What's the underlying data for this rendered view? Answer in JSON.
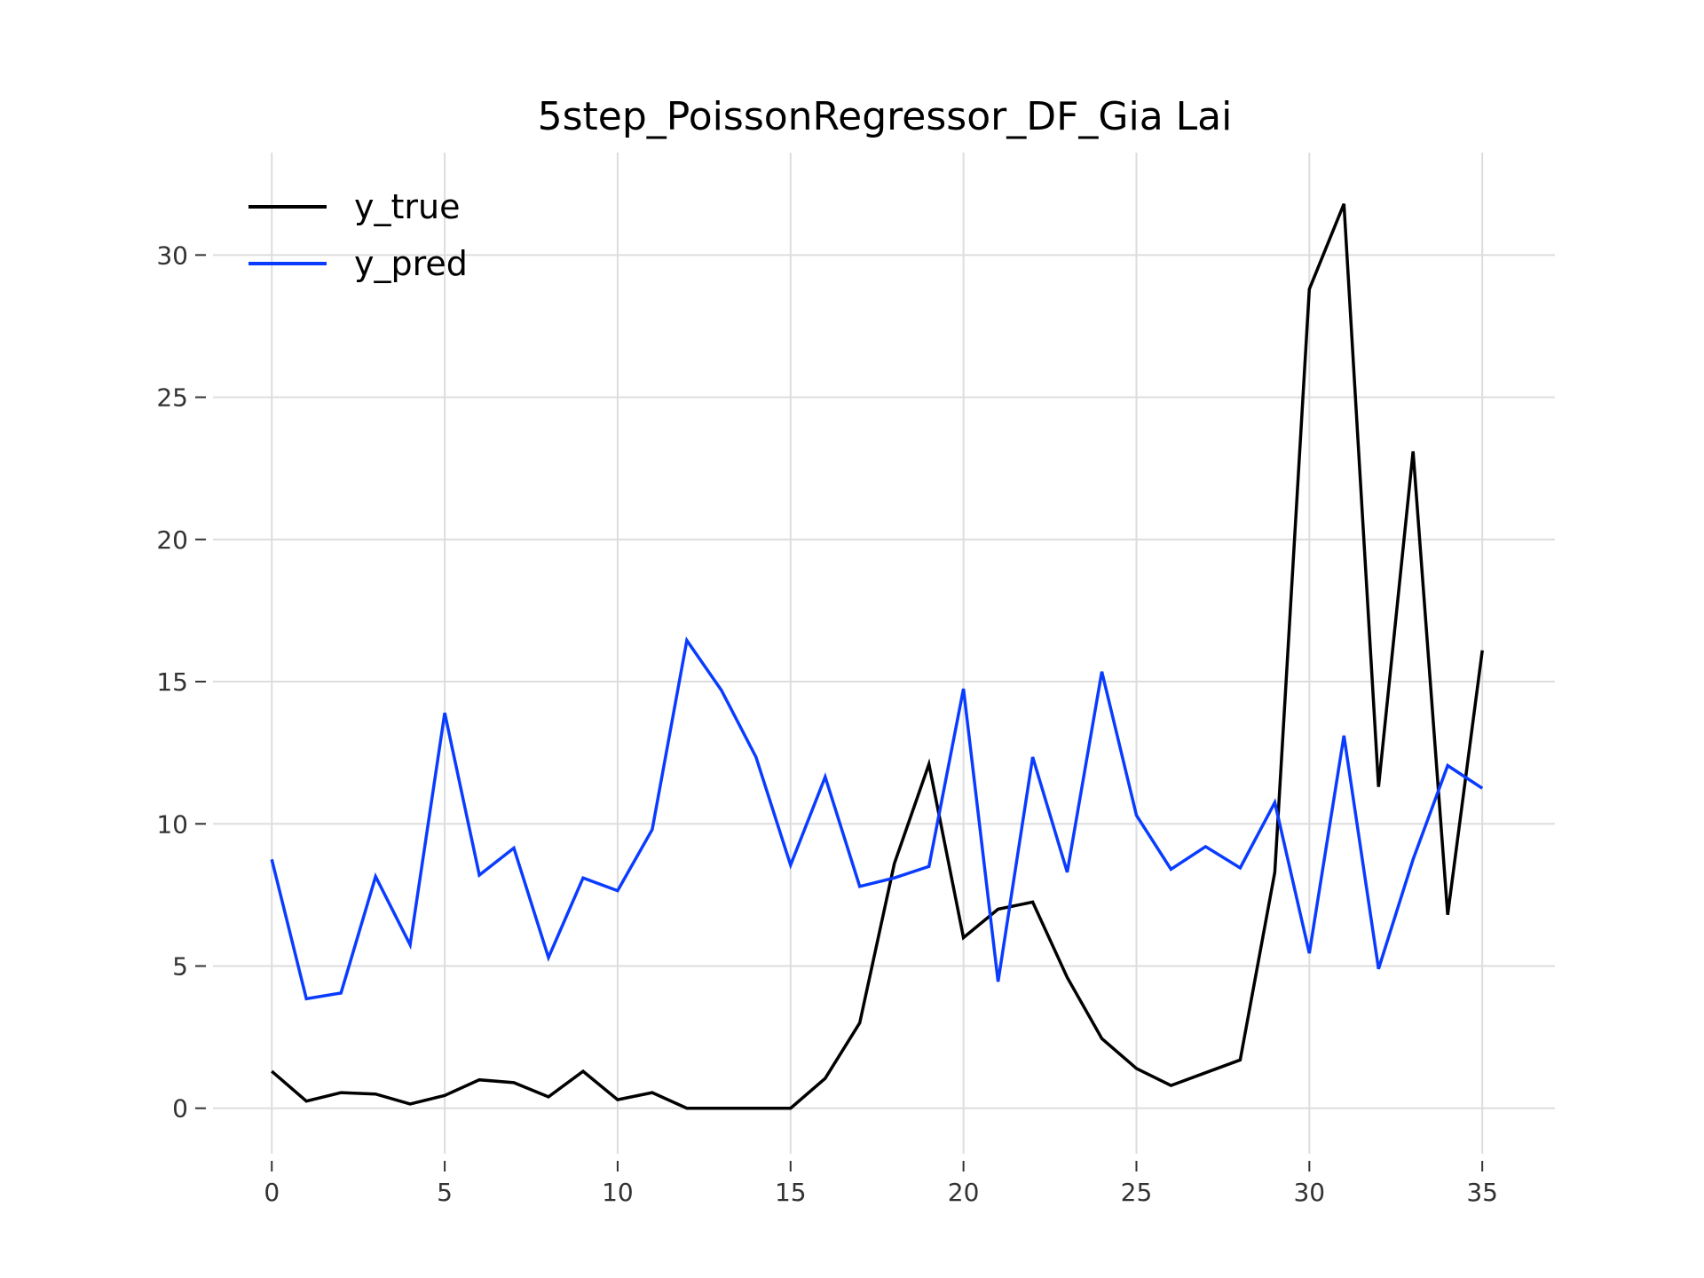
{
  "chart_data": {
    "type": "line",
    "title": "5step_PoissonRegressor_DF_Gia Lai",
    "xlabel": "",
    "ylabel": "",
    "xlim": [
      -1.7,
      37.1
    ],
    "ylim": [
      -1.6,
      33.6
    ],
    "x_ticks": [
      0,
      5,
      10,
      15,
      20,
      25,
      30,
      35
    ],
    "y_ticks": [
      0,
      5,
      10,
      15,
      20,
      25,
      30
    ],
    "grid": true,
    "legend_position": "top-left",
    "x": [
      0,
      1,
      2,
      3,
      4,
      5,
      6,
      7,
      8,
      9,
      10,
      11,
      12,
      13,
      14,
      15,
      16,
      17,
      18,
      19,
      20,
      21,
      22,
      23,
      24,
      25,
      26,
      27,
      28,
      29,
      30,
      31,
      32,
      33,
      34,
      35
    ],
    "series": [
      {
        "name": "y_true",
        "color": "#000000",
        "values": [
          1.3,
          0.25,
          0.55,
          0.5,
          0.15,
          0.45,
          1.0,
          0.9,
          0.4,
          1.3,
          0.3,
          0.55,
          0.0,
          0.0,
          0.0,
          0.0,
          1.05,
          3.0,
          8.6,
          12.1,
          6.0,
          7.0,
          7.25,
          4.6,
          2.45,
          1.4,
          0.8,
          1.25,
          1.7,
          8.3,
          28.8,
          31.8,
          11.3,
          23.1,
          6.8,
          16.1
        ]
      },
      {
        "name": "y_pred",
        "color": "#0a3cff",
        "values": [
          8.75,
          3.85,
          4.05,
          8.15,
          5.75,
          13.9,
          8.2,
          9.15,
          5.3,
          8.1,
          7.65,
          9.8,
          16.45,
          14.7,
          12.35,
          8.55,
          11.65,
          7.8,
          8.1,
          8.5,
          14.75,
          4.45,
          12.35,
          8.3,
          15.35,
          10.3,
          8.4,
          9.2,
          8.45,
          10.75,
          5.45,
          13.1,
          4.9,
          8.75,
          12.05,
          11.25
        ]
      }
    ]
  }
}
